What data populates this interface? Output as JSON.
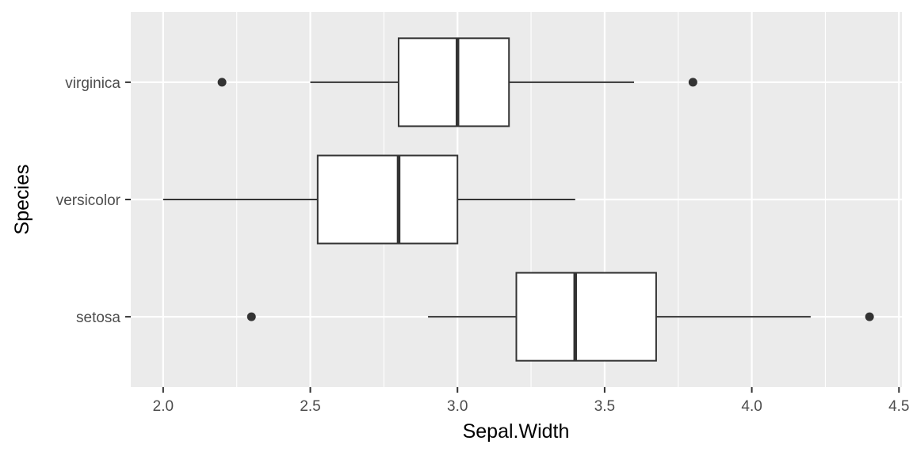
{
  "chart_data": {
    "type": "boxplot",
    "orientation": "horizontal",
    "xlabel": "Sepal.Width",
    "ylabel": "Species",
    "xlim": [
      1.89,
      4.51
    ],
    "x_ticks": [
      "2.0",
      "2.5",
      "3.0",
      "3.5",
      "4.0",
      "4.5"
    ],
    "x_tick_values": [
      2.0,
      2.5,
      3.0,
      3.5,
      4.0,
      4.5
    ],
    "categories": [
      "setosa",
      "versicolor",
      "virginica"
    ],
    "grid": true,
    "series": [
      {
        "category": "setosa",
        "whisker_low": 2.9,
        "q1": 3.2,
        "median": 3.4,
        "q3": 3.675,
        "whisker_high": 4.2,
        "outliers": [
          2.3,
          4.4
        ]
      },
      {
        "category": "versicolor",
        "whisker_low": 2.0,
        "q1": 2.525,
        "median": 2.8,
        "q3": 3.0,
        "whisker_high": 3.4,
        "outliers": []
      },
      {
        "category": "virginica",
        "whisker_low": 2.5,
        "q1": 2.8,
        "median": 3.0,
        "q3": 3.175,
        "whisker_high": 3.6,
        "outliers": [
          2.2,
          3.8
        ]
      }
    ],
    "colors": {
      "panel": "#ebebeb",
      "grid": "#ffffff",
      "box_fill": "#ffffff",
      "box_line": "#333333",
      "tick": "#333333"
    }
  }
}
